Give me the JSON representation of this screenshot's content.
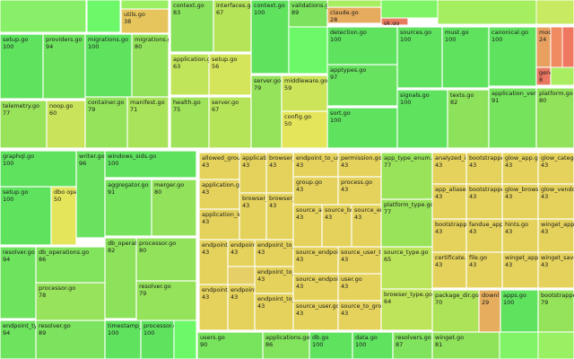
{
  "cells": [
    {
      "label": "utils.go",
      "value": 38
    },
    {
      "label": "setup.go",
      "value": 100
    },
    {
      "label": "providers.go",
      "value": 94
    },
    {
      "label": "migrations.go",
      "value": 100
    },
    {
      "label": "migrations.go",
      "value": 80
    },
    {
      "label": "telemetry.go",
      "value": 77
    },
    {
      "label": "noop.go",
      "value": 60
    },
    {
      "label": "container.go",
      "value": 79
    },
    {
      "label": "manifest.go",
      "value": 71
    },
    {
      "label": "context.go",
      "value": 83
    },
    {
      "label": "interfaces.go",
      "value": 67
    },
    {
      "label": "application.go",
      "value": 63
    },
    {
      "label": "setup.go",
      "value": 56
    },
    {
      "label": "health.go",
      "value": 75
    },
    {
      "label": "server.go",
      "value": 67
    },
    {
      "label": "context.go",
      "value": 100
    },
    {
      "label": "validations.go",
      "value": 89
    },
    {
      "label": "server.go",
      "value": 79
    },
    {
      "label": "middleware.go",
      "value": 59
    },
    {
      "label": "config.go",
      "value": 50
    },
    {
      "label": "claude.go",
      "value": 28
    },
    {
      "label": "sk.go",
      "value": 10
    },
    {
      "label": "detection.go",
      "value": 100
    },
    {
      "label": "apptypes.go",
      "value": 97
    },
    {
      "label": "sort.go",
      "value": 100
    },
    {
      "label": "sources.go",
      "value": 100
    },
    {
      "label": "must.go",
      "value": 100
    },
    {
      "label": "signals.go",
      "value": 100
    },
    {
      "label": "texts.go",
      "value": 82
    },
    {
      "label": "canonical.go",
      "value": 100
    },
    {
      "label": "mode",
      "value": 24
    },
    {
      "label": "gene",
      "value": 8
    },
    {
      "label": "application_versi",
      "value": 91
    },
    {
      "label": "platform.go",
      "value": 80
    },
    {
      "label": "graphql.go",
      "value": 100
    },
    {
      "label": "writer.go",
      "value": 96
    },
    {
      "label": "windows_sids.go",
      "value": 100
    },
    {
      "label": "setup.go",
      "value": 100
    },
    {
      "label": "dbo operat",
      "value": 50
    },
    {
      "label": "aggregator.go",
      "value": 91
    },
    {
      "label": "merger.go",
      "value": 80
    },
    {
      "label": "resolver.go",
      "value": 94
    },
    {
      "label": "db_operations.go",
      "value": 86
    },
    {
      "label": "processor.go",
      "value": 78
    },
    {
      "label": "db_operat",
      "value": 82
    },
    {
      "label": "processor.go",
      "value": 80
    },
    {
      "label": "resolver.go",
      "value": 79
    },
    {
      "label": "endpoint_type",
      "value": 94
    },
    {
      "label": "resolver.go",
      "value": 89
    },
    {
      "label": "timestamp_p",
      "value": 100
    },
    {
      "label": "processor.go",
      "value": 100
    },
    {
      "label": "allowed_group_",
      "value": 43
    },
    {
      "label": "application",
      "value": 43
    },
    {
      "label": "browser_e",
      "value": 43
    },
    {
      "label": "endpoint_to_user",
      "value": 43
    },
    {
      "label": "permission.go",
      "value": 43
    },
    {
      "label": "application.go",
      "value": 43
    },
    {
      "label": "application_inve",
      "value": 43
    },
    {
      "label": "browser_a",
      "value": 43
    },
    {
      "label": "browser_p",
      "value": 43
    },
    {
      "label": "group.go",
      "value": 43
    },
    {
      "label": "process.go",
      "value": 43
    },
    {
      "label": "source_app",
      "value": 43
    },
    {
      "label": "source_bro",
      "value": 43
    },
    {
      "label": "source_end",
      "value": 43
    },
    {
      "label": "endpoint_",
      "value": 43
    },
    {
      "label": "endpoint_i",
      "value": 43
    },
    {
      "label": "endpoint_to_br",
      "value": 43
    },
    {
      "label": "endpoint_to_br",
      "value": 43
    },
    {
      "label": "source_endpoint_",
      "value": 43
    },
    {
      "label": "source_user_to_",
      "value": 43
    },
    {
      "label": "source_endpoint_",
      "value": 43
    },
    {
      "label": "user.go",
      "value": 43
    },
    {
      "label": "endpoint_i",
      "value": 43
    },
    {
      "label": "endpoint_t",
      "value": 43
    },
    {
      "label": "endpoint_to_br",
      "value": 43
    },
    {
      "label": "source_user.go",
      "value": 43
    },
    {
      "label": "source_to_group",
      "value": 43
    },
    {
      "label": "app_type_enum.g",
      "value": 77
    },
    {
      "label": "platform_type.go",
      "value": 77
    },
    {
      "label": "source_type.go",
      "value": 65
    },
    {
      "label": "browser_type.go",
      "value": 64
    },
    {
      "label": "analyzed_inst",
      "value": 43
    },
    {
      "label": "bootstrapped",
      "value": 43
    },
    {
      "label": "glow_app.go",
      "value": 43
    },
    {
      "label": "glow_categor",
      "value": 43
    },
    {
      "label": "app_aliases.g",
      "value": 43
    },
    {
      "label": "bootstrapped",
      "value": 43
    },
    {
      "label": "glow_browse",
      "value": 43
    },
    {
      "label": "glow_vendor",
      "value": 43
    },
    {
      "label": "bootstrapped",
      "value": 43
    },
    {
      "label": "fandue_app",
      "value": 43
    },
    {
      "label": "hints.go",
      "value": 43
    },
    {
      "label": "winget_applic",
      "value": 43
    },
    {
      "label": "certificate.go",
      "value": 43
    },
    {
      "label": "file.go",
      "value": 43
    },
    {
      "label": "winget_applic",
      "value": 43
    },
    {
      "label": "winget_saved",
      "value": 43
    },
    {
      "label": "package_dir.go",
      "value": 70
    },
    {
      "label": "downl",
      "value": 29
    },
    {
      "label": "apps.go",
      "value": 100
    },
    {
      "label": "bootstrapped",
      "value": 79
    },
    {
      "label": "winget.go",
      "value": 81
    },
    {
      "label": "users.go",
      "value": 90
    },
    {
      "label": "applications.go",
      "value": 86
    },
    {
      "label": "db.go",
      "value": 100
    },
    {
      "label": "data.go",
      "value": 100
    },
    {
      "label": "resolvers.go",
      "value": 87
    }
  ]
}
